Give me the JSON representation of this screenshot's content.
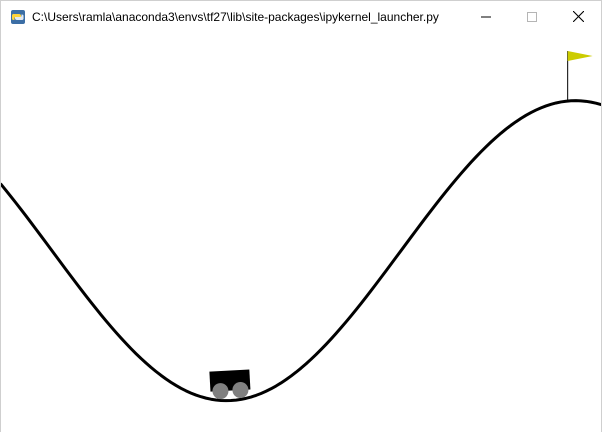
{
  "window": {
    "title": "C:\\Users\\ramla\\anaconda3\\envs\\tf27\\lib\\site-packages\\ipykernel_launcher.py",
    "app_icon": "python-icon",
    "controls": [
      "minimize-icon",
      "maximize-icon",
      "close-icon"
    ]
  },
  "game": {
    "name": "MountainCar",
    "position_range": [
      -1.2,
      0.6
    ],
    "goal_position": 0.5,
    "car_position": -0.51,
    "colors": {
      "background": "#ffffff",
      "track": "#000000",
      "car_body": "#000000",
      "wheels": "#808080",
      "flag": "#cccc00",
      "flagpole": "#000000"
    }
  }
}
